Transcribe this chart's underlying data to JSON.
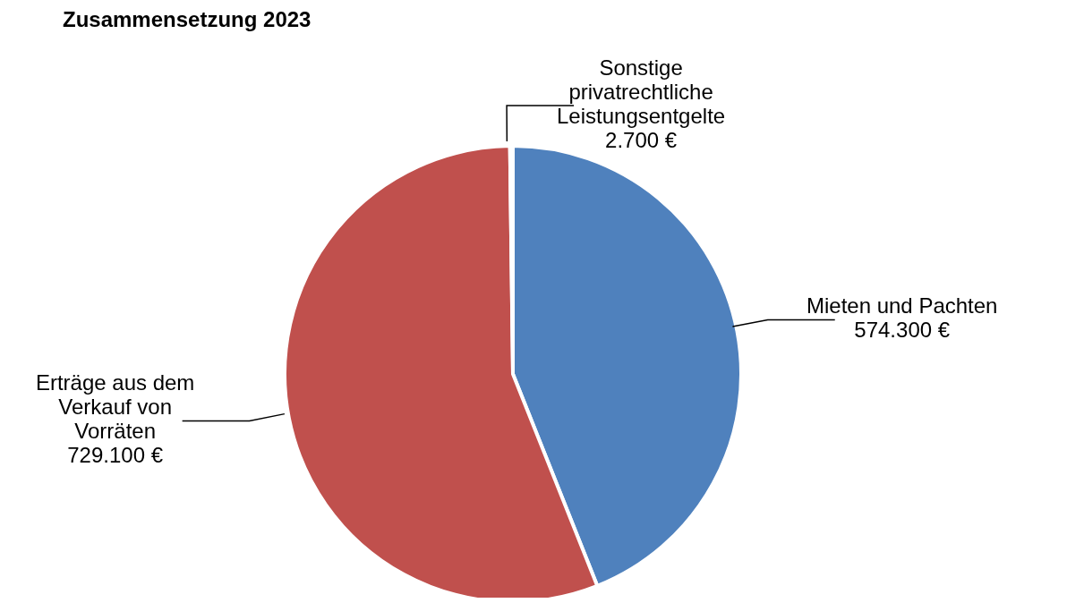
{
  "chart_data": {
    "type": "pie",
    "title": "Zusammensetzung 2023",
    "categories": [
      "Mieten und Pachten",
      "Erträge aus dem Verkauf von Vorräten",
      "Sonstige privatrechtliche Leistungsentgelte"
    ],
    "values": [
      574300,
      729100,
      2700
    ],
    "value_labels": [
      "574.300 €",
      "729.100 €",
      "2.700 €"
    ],
    "colors": [
      "#4f81bd",
      "#c0504d",
      "#9bbb59"
    ],
    "legend": false
  }
}
